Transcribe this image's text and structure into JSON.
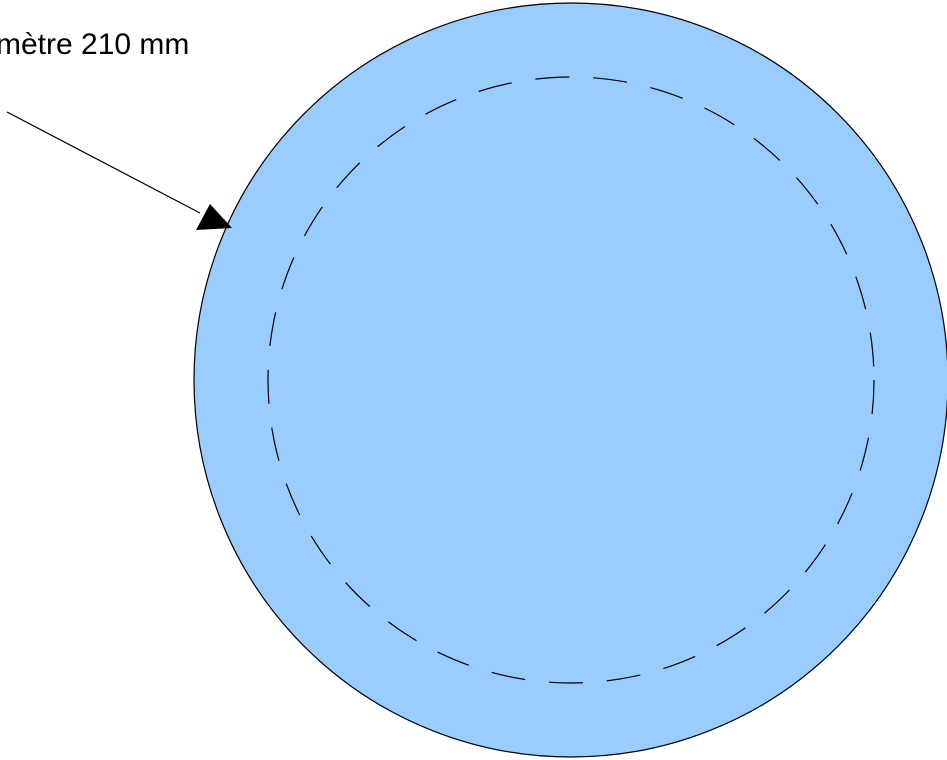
{
  "annotation": {
    "label": "mètre 210 mm"
  },
  "colors": {
    "disc_fill": "#99ccff",
    "outline": "#000000",
    "background": "#ffffff"
  }
}
